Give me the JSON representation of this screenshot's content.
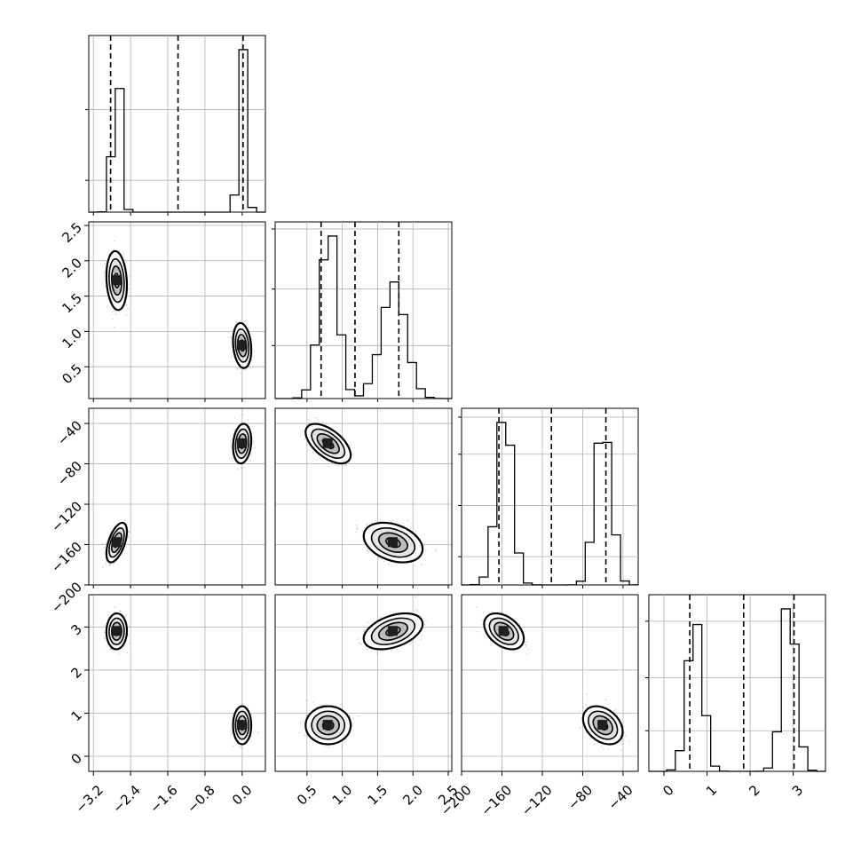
{
  "chart_data": {
    "type": "corner",
    "grid": true,
    "quantile_lines": "dashed",
    "parameters": [
      {
        "index": 0,
        "range": [
          -3.3,
          0.5
        ],
        "ticks": [
          -3.2,
          -2.4,
          -1.6,
          -0.8,
          0.0
        ],
        "tick_labels": [
          "−3.2",
          "−2.4",
          "−1.6",
          "−0.8",
          "0.0"
        ],
        "quantiles": [
          -2.83,
          -1.38,
          0.02
        ],
        "modes": [
          {
            "center": -2.7,
            "sd": 0.09
          },
          {
            "center": 0.0,
            "sd": 0.08
          }
        ]
      },
      {
        "index": 1,
        "range": [
          0.05,
          2.55
        ],
        "ticks": [
          0.5,
          1.0,
          1.5,
          2.0,
          2.5
        ],
        "tick_labels": [
          "0.5",
          "1.0",
          "1.5",
          "2.0",
          "2.5"
        ],
        "quantiles": [
          0.7,
          1.18,
          1.8
        ],
        "modes": [
          {
            "center": 0.8,
            "sd": 0.13
          },
          {
            "center": 1.72,
            "sd": 0.17
          }
        ]
      },
      {
        "index": 2,
        "range": [
          -200,
          -25
        ],
        "ticks": [
          -200,
          -160,
          -120,
          -80,
          -40
        ],
        "tick_labels": [
          "−200",
          "−160",
          "−120",
          "−80",
          "−40"
        ],
        "quantiles": [
          -163,
          -111,
          -57
        ],
        "modes": [
          {
            "center": -158,
            "sd": 8
          },
          {
            "center": -60,
            "sd": 8
          }
        ]
      },
      {
        "index": 3,
        "range": [
          -0.35,
          3.75
        ],
        "ticks": [
          0,
          1,
          2,
          3
        ],
        "tick_labels": [
          "0",
          "1",
          "2",
          "3"
        ],
        "quantiles": [
          0.6,
          1.85,
          3.02
        ],
        "modes": [
          {
            "center": 0.72,
            "sd": 0.18
          },
          {
            "center": 2.9,
            "sd": 0.17
          }
        ]
      }
    ],
    "hist_y_ticks": [
      [
        0.18,
        0.58
      ],
      [
        0.3,
        0.62,
        0.96
      ],
      [
        0.16,
        0.45,
        0.74,
        0.95
      ],
      [
        0.23,
        0.53,
        0.85
      ]
    ],
    "clusters": [
      [
        {
          "center": [
            -2.7,
            1.72
          ],
          "cov": [
            [
              0.0081,
              -0.0023
            ],
            [
              -0.0023,
              0.0289
            ]
          ]
        },
        {
          "center": [
            0.0,
            0.8
          ],
          "cov": [
            [
              0.0064,
              -0.002
            ],
            [
              -0.002,
              0.0169
            ]
          ]
        }
      ],
      [
        {
          "center": [
            -2.7,
            -158
          ],
          "cov": [
            [
              0.0081,
              0.4
            ],
            [
              0.4,
              64
            ]
          ]
        },
        {
          "center": [
            0.0,
            -60
          ],
          "cov": [
            [
              0.0064,
              0.1
            ],
            [
              0.1,
              64
            ]
          ]
        }
      ],
      [
        {
          "center": [
            -2.7,
            2.9
          ],
          "cov": [
            [
              0.0081,
              0.0005
            ],
            [
              0.0005,
              0.0289
            ]
          ]
        },
        {
          "center": [
            0.0,
            0.72
          ],
          "cov": [
            [
              0.0064,
              0.0
            ],
            [
              0.0,
              0.0324
            ]
          ]
        }
      ],
      [
        {
          "center": [
            0.8,
            -60
          ],
          "cov": [
            [
              0.0169,
              -0.6
            ],
            [
              -0.6,
              64
            ]
          ]
        },
        {
          "center": [
            1.72,
            -158
          ],
          "cov": [
            [
              0.0289,
              -0.45
            ],
            [
              -0.45,
              64
            ]
          ]
        }
      ],
      [
        {
          "center": [
            0.8,
            0.72
          ],
          "cov": [
            [
              0.0169,
              0.0
            ],
            [
              0.0,
              0.0324
            ]
          ]
        },
        {
          "center": [
            1.72,
            2.9
          ],
          "cov": [
            [
              0.0289,
              0.012
            ],
            [
              0.012,
              0.0289
            ]
          ]
        }
      ],
      [
        {
          "center": [
            -158,
            2.9
          ],
          "cov": [
            [
              64,
              -0.55
            ],
            [
              -0.55,
              0.0289
            ]
          ]
        },
        {
          "center": [
            -60,
            0.72
          ],
          "cov": [
            [
              64,
              -0.48
            ],
            [
              -0.48,
              0.0324
            ]
          ]
        }
      ]
    ]
  }
}
